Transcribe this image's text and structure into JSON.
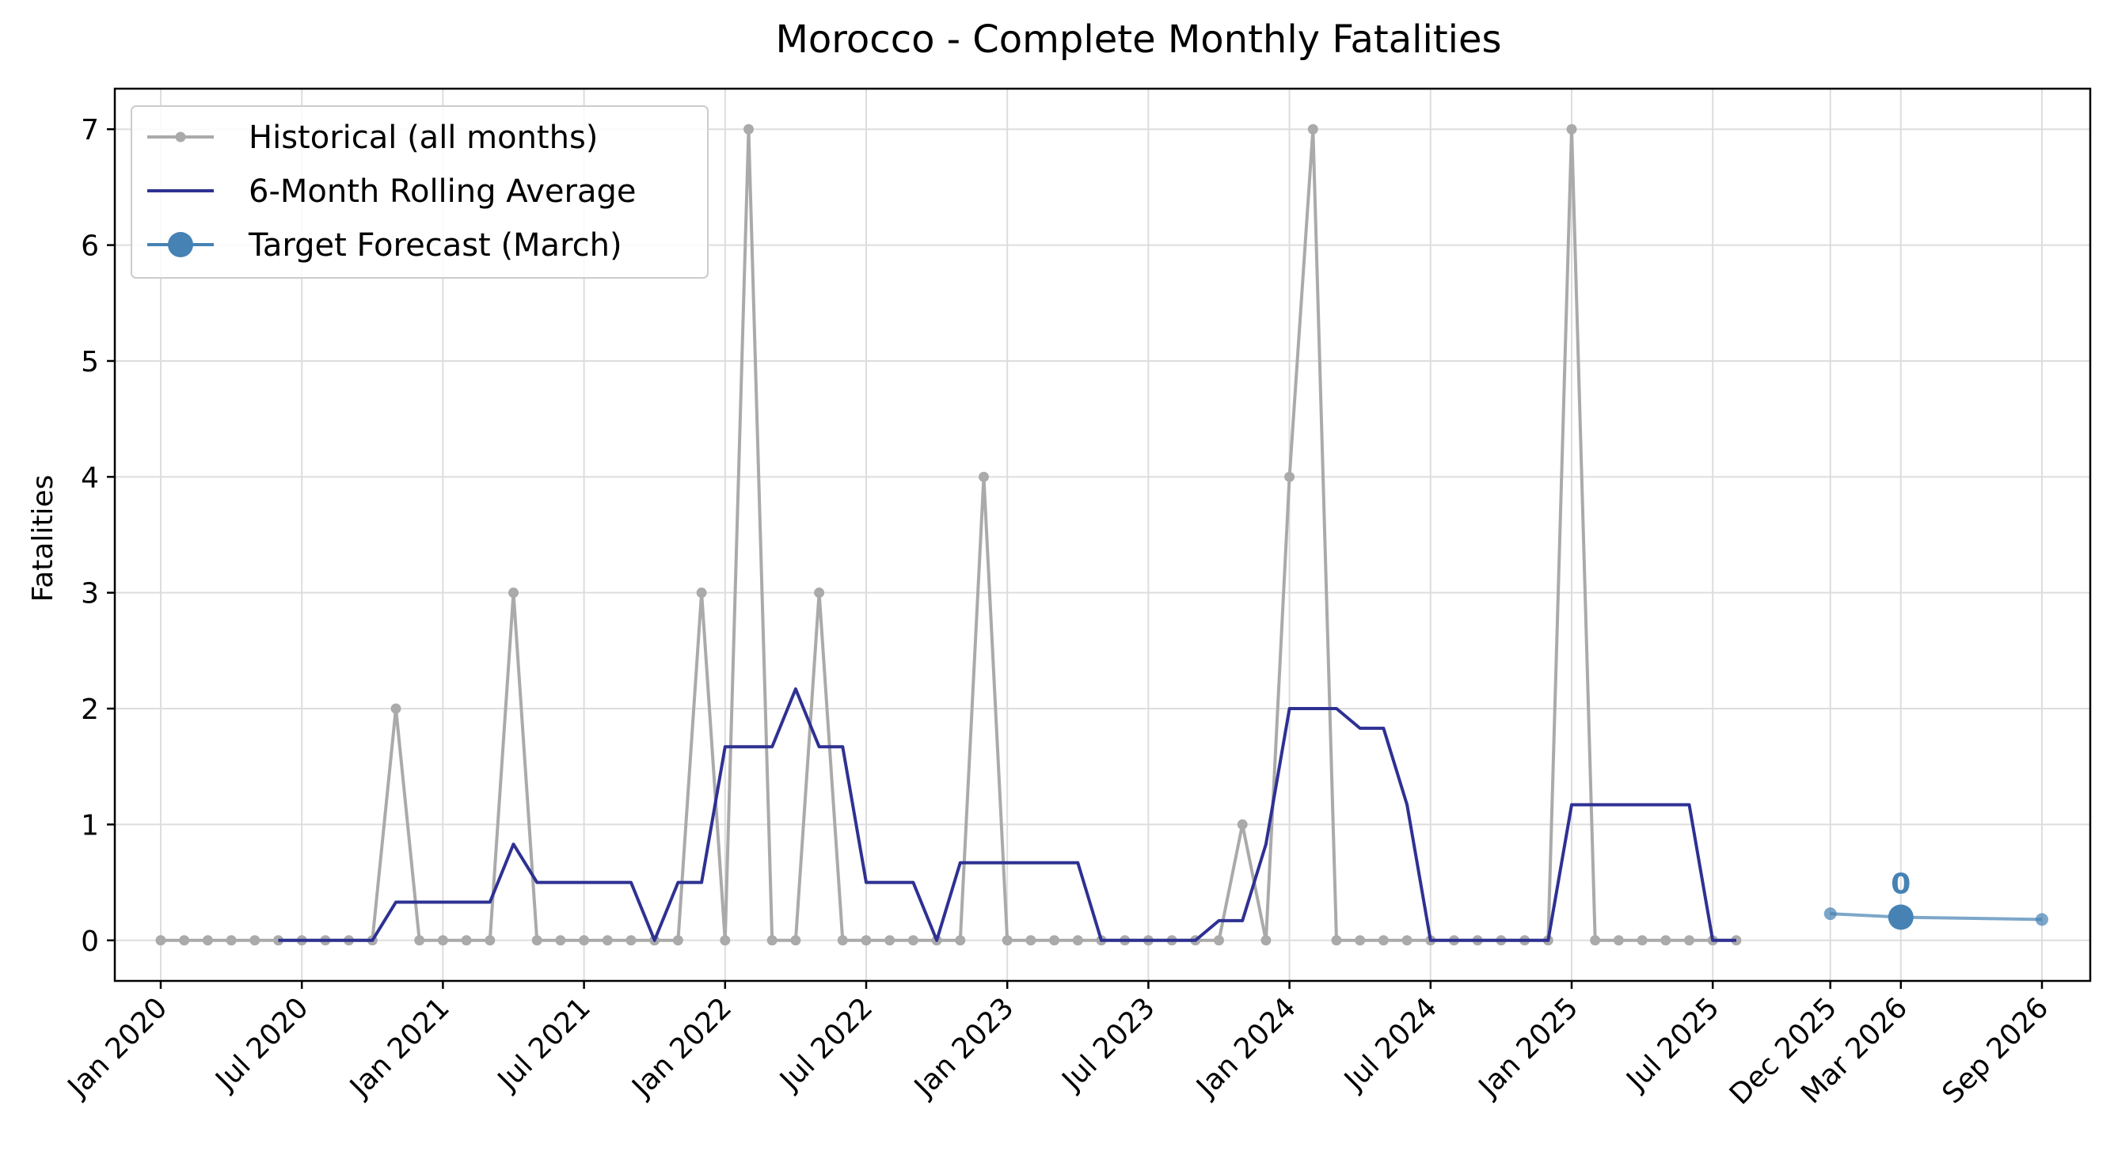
{
  "chart_data": {
    "type": "line",
    "title": "Morocco - Complete Monthly Fatalities",
    "xlabel": "",
    "ylabel": "Fatalities",
    "ylim": [
      -0.35,
      7.35
    ],
    "yticks": [
      0,
      1,
      2,
      3,
      4,
      5,
      6,
      7
    ],
    "grid": true,
    "legend_position": "top-left",
    "xticks": [
      {
        "date": "2020-01",
        "label": "Jan 2020"
      },
      {
        "date": "2020-07",
        "label": "Jul 2020"
      },
      {
        "date": "2021-01",
        "label": "Jan 2021"
      },
      {
        "date": "2021-07",
        "label": "Jul 2021"
      },
      {
        "date": "2022-01",
        "label": "Jan 2022"
      },
      {
        "date": "2022-07",
        "label": "Jul 2022"
      },
      {
        "date": "2023-01",
        "label": "Jan 2023"
      },
      {
        "date": "2023-07",
        "label": "Jul 2023"
      },
      {
        "date": "2024-01",
        "label": "Jan 2024"
      },
      {
        "date": "2024-07",
        "label": "Jul 2024"
      },
      {
        "date": "2025-01",
        "label": "Jan 2025"
      },
      {
        "date": "2025-07",
        "label": "Jul 2025"
      },
      {
        "date": "2025-12",
        "label": "Dec 2025"
      },
      {
        "date": "2026-03",
        "label": "Mar 2026"
      },
      {
        "date": "2026-09",
        "label": "Sep 2026"
      }
    ],
    "series": [
      {
        "name": "Historical (all months)",
        "color": "#aaaaaa",
        "x": [
          "2020-01",
          "2020-02",
          "2020-03",
          "2020-04",
          "2020-05",
          "2020-06",
          "2020-07",
          "2020-08",
          "2020-09",
          "2020-10",
          "2020-11",
          "2020-12",
          "2021-01",
          "2021-02",
          "2021-03",
          "2021-04",
          "2021-05",
          "2021-06",
          "2021-07",
          "2021-08",
          "2021-09",
          "2021-10",
          "2021-11",
          "2021-12",
          "2022-01",
          "2022-02",
          "2022-03",
          "2022-04",
          "2022-05",
          "2022-06",
          "2022-07",
          "2022-08",
          "2022-09",
          "2022-10",
          "2022-11",
          "2022-12",
          "2023-01",
          "2023-02",
          "2023-03",
          "2023-04",
          "2023-05",
          "2023-06",
          "2023-07",
          "2023-08",
          "2023-09",
          "2023-10",
          "2023-11",
          "2023-12",
          "2024-01",
          "2024-02",
          "2024-03",
          "2024-04",
          "2024-05",
          "2024-06",
          "2024-07",
          "2024-08",
          "2024-09",
          "2024-10",
          "2024-11",
          "2024-12",
          "2025-01",
          "2025-02",
          "2025-03",
          "2025-04",
          "2025-05",
          "2025-06",
          "2025-07",
          "2025-08"
        ],
        "y": [
          0,
          0,
          0,
          0,
          0,
          0,
          0,
          0,
          0,
          0,
          2,
          0,
          0,
          0,
          0,
          3,
          0,
          0,
          0,
          0,
          0,
          0,
          0,
          3,
          0,
          7,
          0,
          0,
          3,
          0,
          0,
          0,
          0,
          0,
          0,
          4,
          0,
          0,
          0,
          0,
          0,
          0,
          0,
          0,
          0,
          0,
          1,
          0,
          4,
          7,
          0,
          0,
          0,
          0,
          0,
          0,
          0,
          0,
          0,
          0,
          7,
          0,
          0,
          0,
          0,
          0,
          0,
          0
        ]
      },
      {
        "name": "6-Month Rolling Average",
        "color": "#2e3192",
        "x": [
          "2020-06",
          "2020-07",
          "2020-08",
          "2020-09",
          "2020-10",
          "2020-11",
          "2020-12",
          "2021-01",
          "2021-02",
          "2021-03",
          "2021-04",
          "2021-05",
          "2021-06",
          "2021-07",
          "2021-08",
          "2021-09",
          "2021-10",
          "2021-11",
          "2021-12",
          "2022-01",
          "2022-02",
          "2022-03",
          "2022-04",
          "2022-05",
          "2022-06",
          "2022-07",
          "2022-08",
          "2022-09",
          "2022-10",
          "2022-11",
          "2022-12",
          "2023-01",
          "2023-02",
          "2023-03",
          "2023-04",
          "2023-05",
          "2023-06",
          "2023-07",
          "2023-08",
          "2023-09",
          "2023-10",
          "2023-11",
          "2023-12",
          "2024-01",
          "2024-02",
          "2024-03",
          "2024-04",
          "2024-05",
          "2024-06",
          "2024-07",
          "2024-08",
          "2024-09",
          "2024-10",
          "2024-11",
          "2024-12",
          "2025-01",
          "2025-02",
          "2025-03",
          "2025-04",
          "2025-05",
          "2025-06",
          "2025-07",
          "2025-08"
        ],
        "y": [
          0,
          0,
          0,
          0,
          0,
          0.33,
          0.33,
          0.33,
          0.33,
          0.33,
          0.83,
          0.5,
          0.5,
          0.5,
          0.5,
          0.5,
          0,
          0.5,
          0.5,
          1.67,
          1.67,
          1.67,
          2.17,
          1.67,
          1.67,
          0.5,
          0.5,
          0.5,
          0,
          0.67,
          0.67,
          0.67,
          0.67,
          0.67,
          0.67,
          0,
          0,
          0,
          0,
          0,
          0.17,
          0.17,
          0.83,
          2,
          2,
          2,
          1.83,
          1.83,
          1.17,
          0,
          0,
          0,
          0,
          0,
          0,
          1.17,
          1.17,
          1.17,
          1.17,
          1.17,
          1.17,
          0,
          0
        ]
      },
      {
        "name": "Target Forecast (March)",
        "color": "#4682b4",
        "x": [
          "2025-12",
          "2026-03",
          "2026-09"
        ],
        "y": [
          0.23,
          0.2,
          0.18
        ],
        "target": {
          "x": "2026-03",
          "y": 0.2,
          "label": "0"
        }
      }
    ]
  }
}
